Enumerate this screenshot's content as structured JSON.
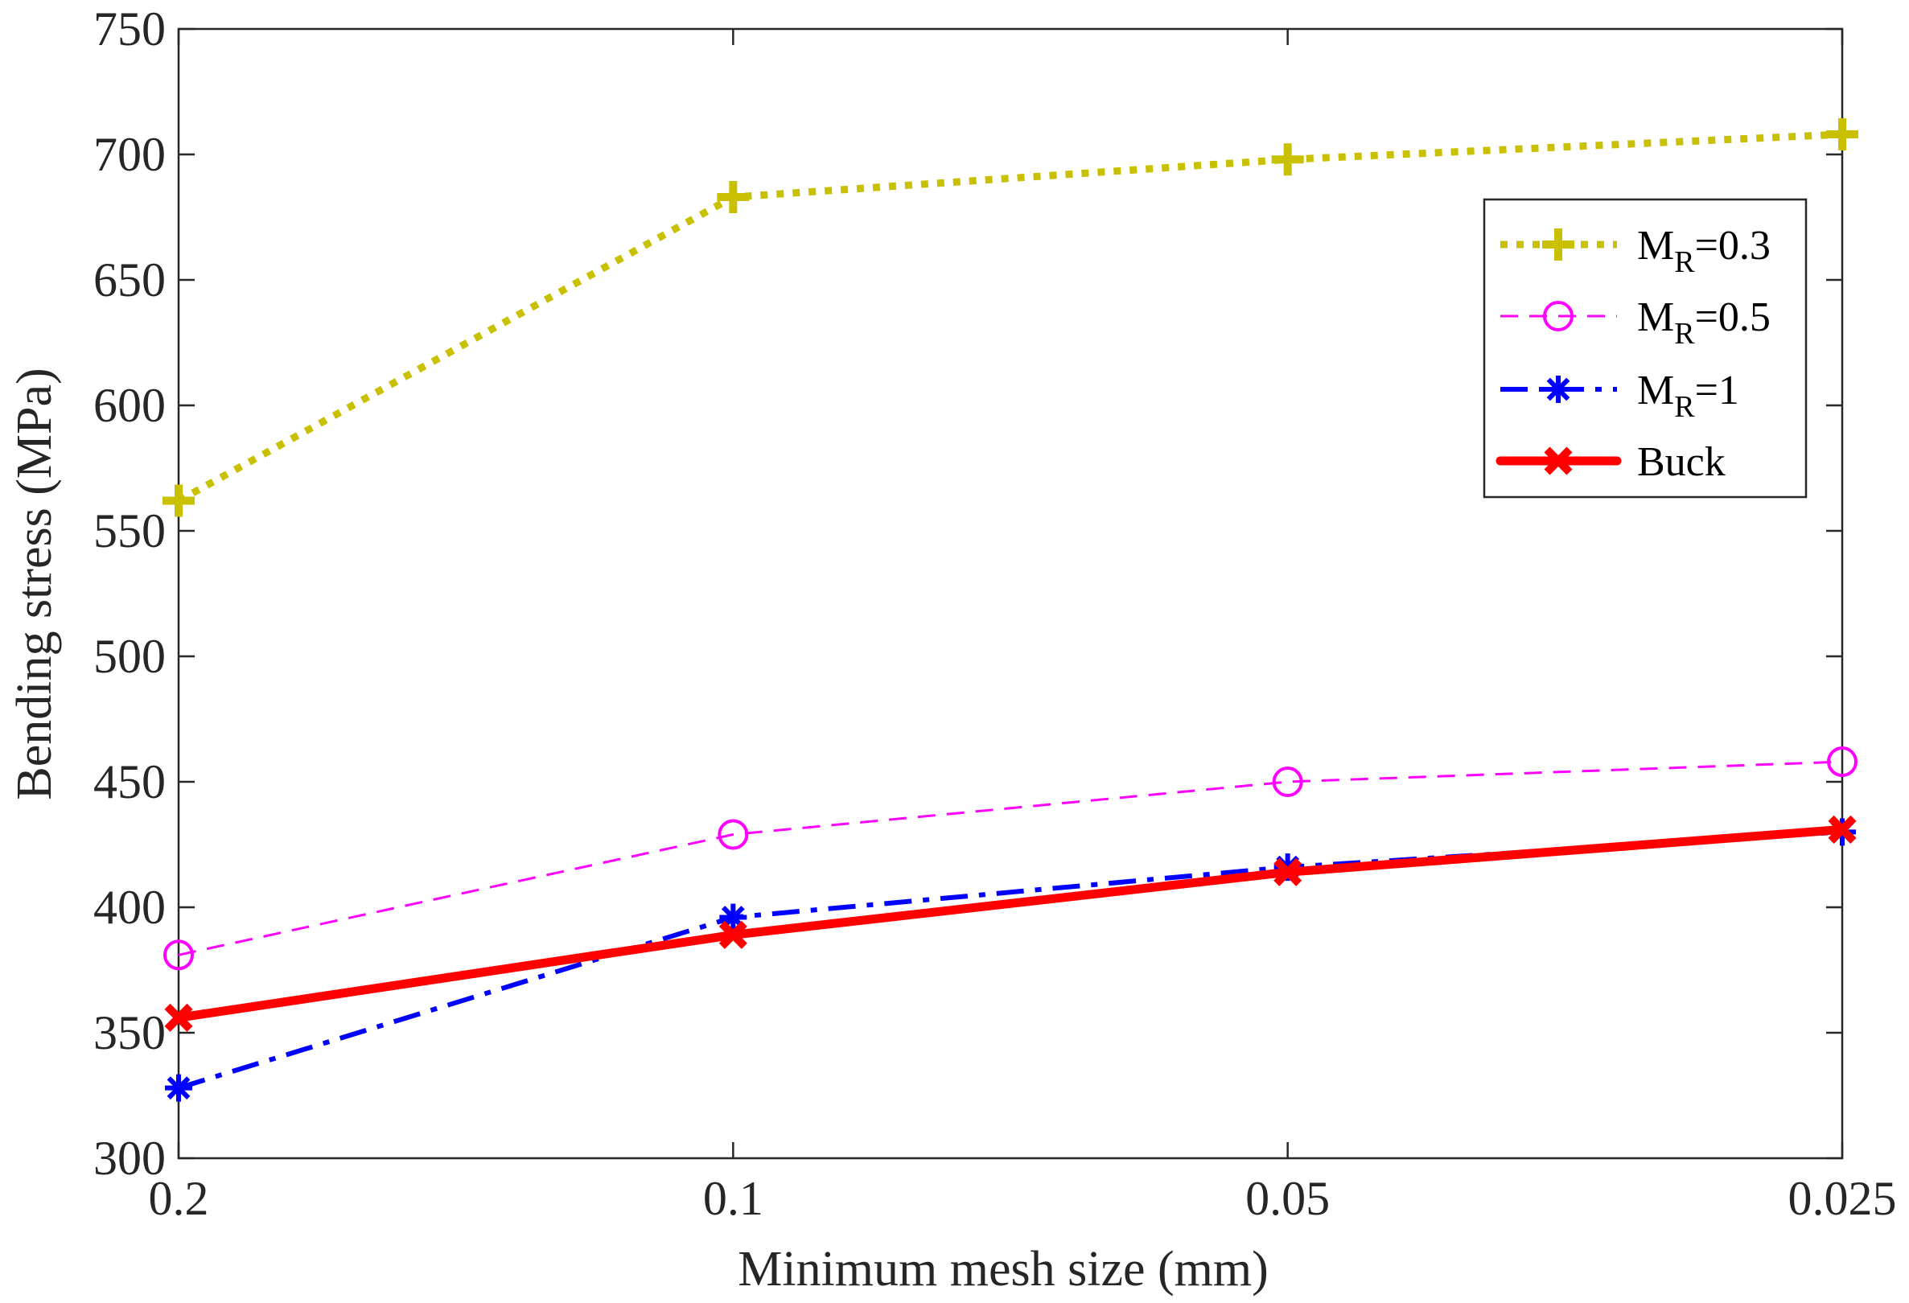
{
  "chart_data": {
    "type": "line",
    "title": "",
    "xlabel": "Minimum mesh size (mm)",
    "ylabel": "Bending stress (MPa)",
    "categories": [
      "0.2",
      "0.1",
      "0.05",
      "0.025"
    ],
    "ylim": [
      300,
      750
    ],
    "yticks": [
      300,
      350,
      400,
      450,
      500,
      550,
      600,
      650,
      700,
      750
    ],
    "grid": false,
    "legend_position": "top-right",
    "series": [
      {
        "name": "M_R=0.3",
        "label_main": "M",
        "label_sub": "R",
        "label_rest": "=0.3",
        "values": [
          562,
          683,
          698,
          708
        ],
        "color": "#C8C000",
        "line_style": "dotted",
        "marker": "plus"
      },
      {
        "name": "M_R=0.5",
        "label_main": "M",
        "label_sub": "R",
        "label_rest": "=0.5",
        "values": [
          381,
          429,
          450,
          458
        ],
        "color": "#FF00FF",
        "line_style": "dashed",
        "marker": "circle"
      },
      {
        "name": "M_R=1",
        "label_main": "M",
        "label_sub": "R",
        "label_rest": "=1",
        "values": [
          328,
          396,
          416,
          430
        ],
        "color": "#0000FF",
        "line_style": "dashdot",
        "marker": "asterisk"
      },
      {
        "name": "Buck",
        "label_main": "Buck",
        "label_sub": "",
        "label_rest": "",
        "values": [
          356,
          389,
          414,
          431
        ],
        "color": "#FF0000",
        "line_style": "solid",
        "marker": "x"
      }
    ]
  }
}
